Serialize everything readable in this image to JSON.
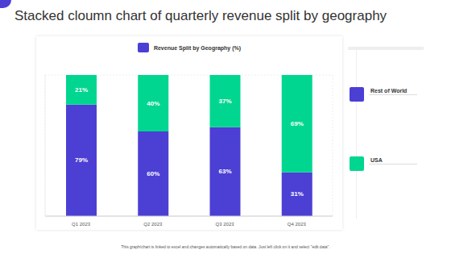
{
  "chart_data": {
    "type": "bar",
    "title": "Stacked cloumn chart of quarterly revenue split by geography",
    "subtitle": "Revenue Split by Geography (%)",
    "annotations": [
      "This graph/chart is linked to excel and changes automatically based on data. Just left click on it and select \"edit data\"."
    ],
    "categories": [
      "Q1 2023",
      "Q2 2023",
      "Q3 2023",
      "Q4 2023"
    ],
    "series": [
      {
        "name": "Rest of World",
        "color": "#4b3fd4",
        "values": [
          79,
          60,
          63,
          31
        ],
        "value_labels": [
          "79%",
          "60%",
          "63%",
          "31%"
        ]
      },
      {
        "name": "USA",
        "color": "#00d68f",
        "values": [
          21,
          40,
          37,
          69
        ],
        "value_labels": [
          "21%",
          "40%",
          "37%",
          "69%"
        ]
      }
    ],
    "stacked": true,
    "data_labels": true,
    "ylim": [
      0,
      100
    ],
    "yticks": [
      0,
      20,
      40,
      60,
      80,
      100
    ],
    "grid": true,
    "tick_labels": "x",
    "legend": "right"
  }
}
